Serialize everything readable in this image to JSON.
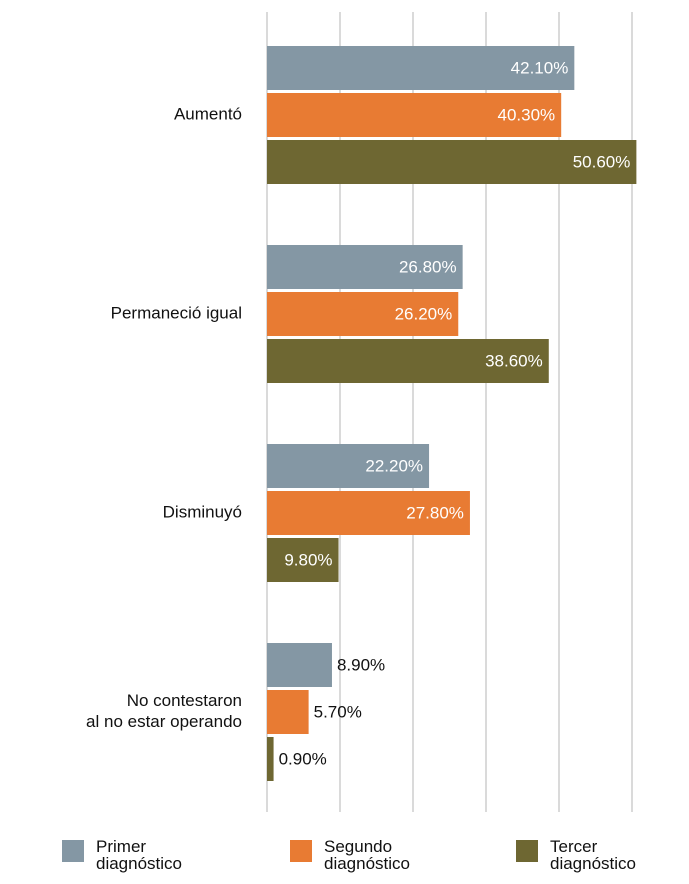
{
  "chart_data": {
    "type": "barh",
    "categories": [
      "Aumentó",
      "Permaneció igual",
      "Disminuyó",
      "No contestaron\nal no estar operando"
    ],
    "series": [
      {
        "name": "Primer\ndiagnóstico",
        "color": "#8497a4",
        "values": [
          42.1,
          26.8,
          22.2,
          8.9
        ],
        "value_labels": [
          "42.10%",
          "26.80%",
          "22.20%",
          "8.90%"
        ]
      },
      {
        "name": "Segundo\ndiagnóstico",
        "color": "#e87b33",
        "values": [
          40.3,
          26.2,
          27.8,
          5.7
        ],
        "value_labels": [
          "40.30%",
          "26.20%",
          "27.80%",
          "5.70%"
        ]
      },
      {
        "name": "Tercer\ndiagnóstico",
        "color": "#6e6732",
        "values": [
          50.6,
          38.6,
          9.8,
          0.9
        ],
        "value_labels": [
          "50.60%",
          "38.60%",
          "9.80%",
          "0.90%"
        ]
      }
    ],
    "xlim": [
      0,
      50
    ],
    "xticks": [
      0,
      10,
      20,
      30,
      40,
      50
    ],
    "grid": true,
    "legend": "bottom"
  }
}
